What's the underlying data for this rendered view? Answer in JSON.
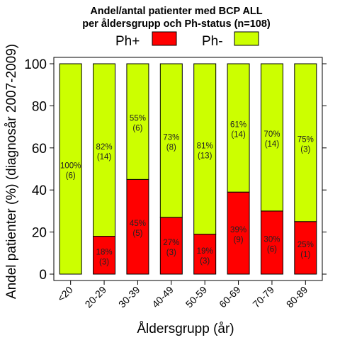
{
  "chart_data": {
    "type": "bar",
    "stacked": true,
    "title": "Andel/antal patienter med BCP ALL",
    "subtitle": "per åldersgrupp och Ph-status (n=108)",
    "xlabel": "Åldersgrupp (år)",
    "ylabel": "Andel patienter (%) (diagnosår 2007-2009)",
    "ylim": [
      0,
      100
    ],
    "yticks": [
      0,
      20,
      40,
      60,
      80,
      100
    ],
    "categories": [
      "<20",
      "20-29",
      "30-39",
      "40-49",
      "50-59",
      "60-69",
      "70-79",
      "80-89"
    ],
    "legend_position": "top",
    "series": [
      {
        "name": "Ph+",
        "color": "#ff0000",
        "values": [
          0,
          18,
          45,
          27,
          19,
          39,
          30,
          25
        ],
        "labels": [
          "",
          "18%",
          "45%",
          "27%",
          "19%",
          "39%",
          "30%",
          "25%"
        ],
        "counts": [
          "",
          "(3)",
          "(5)",
          "(3)",
          "(3)",
          "(9)",
          "(6)",
          "(1)"
        ]
      },
      {
        "name": "Ph-",
        "color": "#ccff00",
        "values": [
          100,
          82,
          55,
          73,
          81,
          61,
          70,
          75
        ],
        "labels": [
          "100%",
          "82%",
          "55%",
          "73%",
          "81%",
          "61%",
          "70%",
          "75%"
        ],
        "counts": [
          "(6)",
          "(14)",
          "(6)",
          "(8)",
          "(13)",
          "(14)",
          "(14)",
          "(3)"
        ]
      }
    ]
  }
}
